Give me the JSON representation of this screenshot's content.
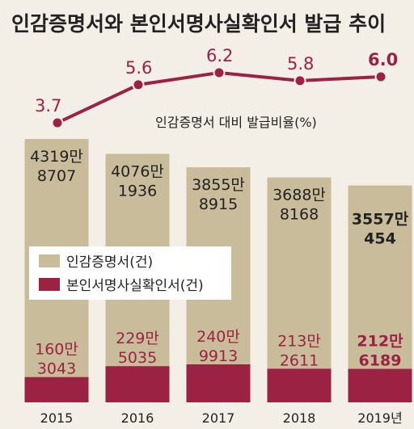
{
  "title": "인감증명서와 본인서명사실확인서 발급 추이",
  "colors": {
    "background": "#f3efe7",
    "cert_bar": "#c9bc9a",
    "self_bar": "#9b2242",
    "line": "#9b2242"
  },
  "legend": [
    {
      "label": "인감증명서(건)",
      "color": "#c9bc9a"
    },
    {
      "label": "본인서명사실확인서(건)",
      "color": "#9b2242"
    }
  ],
  "rate_series_label": "인감증명서 대비 발급비율(%)",
  "chart_data": {
    "type": "bar",
    "title": "인감증명서와 본인서명사실확인서 발급 추이",
    "categories": [
      "2015",
      "2016",
      "2017",
      "2018",
      "2019년"
    ],
    "series": [
      {
        "name": "인감증명서(건)",
        "values": [
          43198707,
          40761936,
          38558915,
          36888168,
          35570454
        ],
        "labels": [
          [
            "4319만",
            "8707"
          ],
          [
            "4076만",
            "1936"
          ],
          [
            "3855만",
            "8915"
          ],
          [
            "3688만",
            "8168"
          ],
          [
            "3557만",
            "454"
          ]
        ]
      },
      {
        "name": "본인서명사실확인서(건)",
        "values": [
          1603043,
          2295035,
          2409913,
          2132611,
          2126189
        ],
        "labels": [
          [
            "160만",
            "3043"
          ],
          [
            "229만",
            "5035"
          ],
          [
            "240만",
            "9913"
          ],
          [
            "213만",
            "2611"
          ],
          [
            "212만",
            "6189"
          ]
        ]
      },
      {
        "name": "인감증명서 대비 발급비율(%)",
        "type": "line",
        "values": [
          3.7,
          5.6,
          6.2,
          5.8,
          6.0
        ],
        "labels": [
          "3.7",
          "5.6",
          "6.2",
          "5.8",
          "6.0"
        ]
      }
    ],
    "legend_position": "middle-left",
    "grid": false
  }
}
